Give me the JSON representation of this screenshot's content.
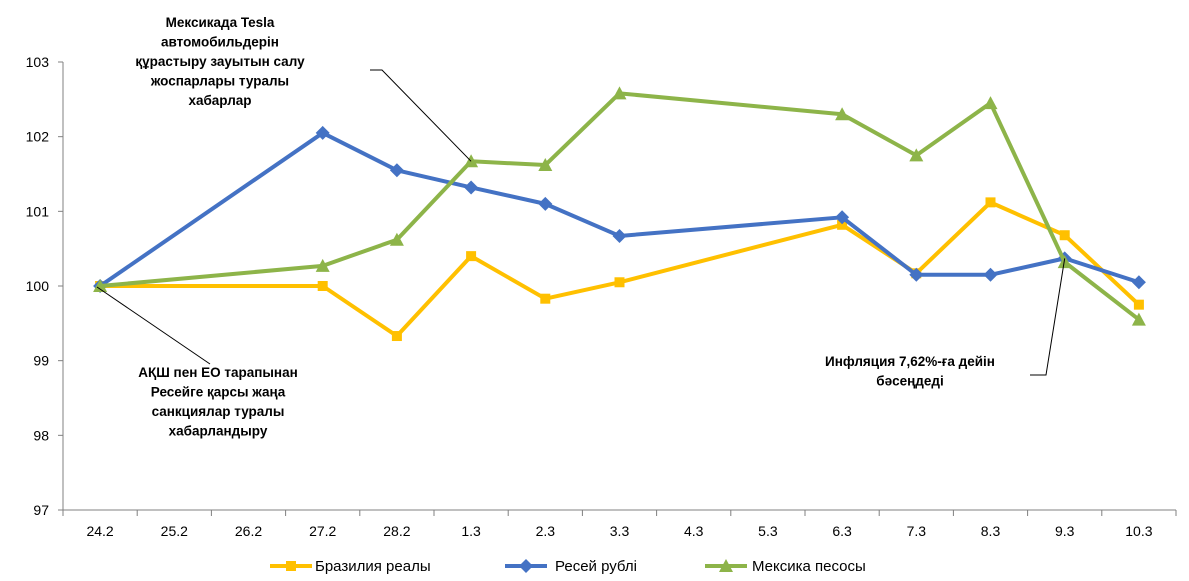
{
  "chart_data": {
    "type": "line",
    "categories": [
      "24.2",
      "25.2",
      "26.2",
      "27.2",
      "28.2",
      "1.3",
      "2.3",
      "3.3",
      "4.3",
      "5.3",
      "6.3",
      "7.3",
      "8.3",
      "9.3",
      "10.3"
    ],
    "ylim": [
      97,
      103
    ],
    "yticks": [
      97,
      98,
      99,
      100,
      101,
      102,
      103
    ],
    "grid": false,
    "legend_position": "bottom",
    "series": [
      {
        "name": "Бразилия реалы",
        "color": "#FFC000",
        "marker": "square",
        "values": [
          100.0,
          null,
          null,
          100.0,
          99.33,
          100.4,
          99.83,
          100.05,
          null,
          null,
          100.82,
          100.17,
          101.12,
          100.68,
          99.75
        ]
      },
      {
        "name": "Ресей рублі",
        "color": "#4472C4",
        "marker": "diamond",
        "values": [
          100.0,
          null,
          null,
          102.05,
          101.55,
          101.32,
          101.1,
          100.67,
          null,
          null,
          100.92,
          100.15,
          100.15,
          100.37,
          100.05
        ]
      },
      {
        "name": "Мексика песосы",
        "color": "#8DB449",
        "marker": "triangle",
        "values": [
          100.0,
          null,
          null,
          100.27,
          100.62,
          101.67,
          101.62,
          102.58,
          null,
          null,
          102.3,
          101.75,
          102.45,
          100.32,
          99.55
        ]
      }
    ],
    "annotations": [
      {
        "lines": [
          "Мексикада Tesla",
          "автомобильдерін",
          "құрастыру зауытын салу",
          "жоспарлары туралы",
          "хабарлар"
        ],
        "target_category": "1.3",
        "target_value": 101.67
      },
      {
        "lines": [
          "АҚШ пен ЕО тарапынан",
          "Ресейге қарсы жаңа",
          "санкциялар туралы",
          "хабарландыру"
        ],
        "target_category": "24.2",
        "target_value": 100.0
      },
      {
        "lines": [
          "Инфляция 7,62%-ға дейін",
          "бәсеңдеді"
        ],
        "target_category": "9.3",
        "target_value": 100.37
      }
    ]
  }
}
